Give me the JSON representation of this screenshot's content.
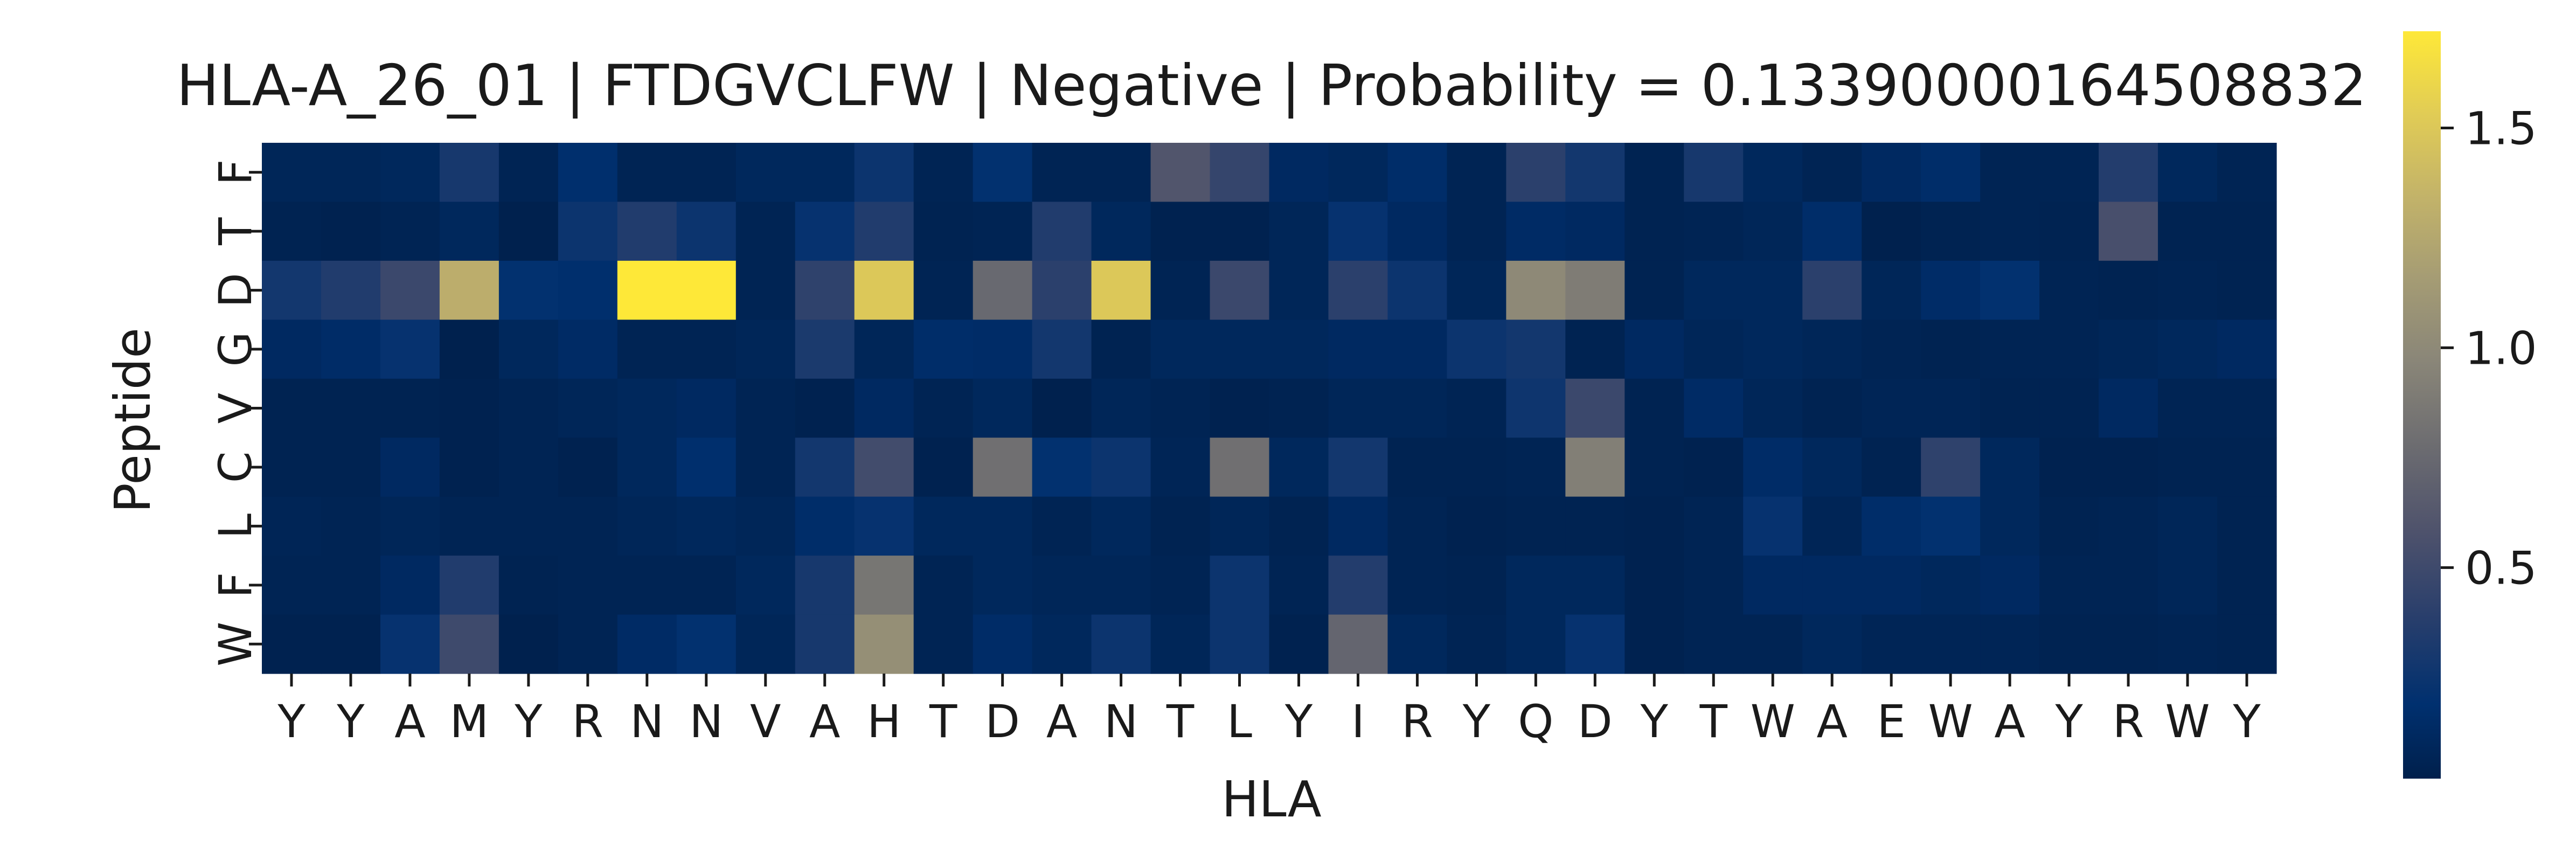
{
  "chart_data": {
    "type": "heatmap",
    "title": "HLA-A_26_01 | FTDGVCLFW | Negative | Probability = 0.13390000164508832",
    "xlabel": "HLA",
    "ylabel": "Peptide",
    "x_categories": [
      "Y",
      "Y",
      "A",
      "M",
      "Y",
      "R",
      "N",
      "N",
      "V",
      "A",
      "H",
      "T",
      "D",
      "A",
      "N",
      "T",
      "L",
      "Y",
      "I",
      "R",
      "Y",
      "Q",
      "D",
      "Y",
      "T",
      "W",
      "A",
      "E",
      "W",
      "A",
      "Y",
      "R",
      "W",
      "Y"
    ],
    "y_categories": [
      "F",
      "T",
      "D",
      "G",
      "V",
      "C",
      "L",
      "F",
      "W"
    ],
    "colormap": "cividis",
    "colorbar": {
      "vmin": 0.02,
      "vmax": 1.72,
      "ticks": [
        0.5,
        1.0,
        1.5
      ],
      "tick_labels": [
        "0.5",
        "1.0",
        "1.5"
      ]
    },
    "grid": false,
    "values": [
      [
        0.08,
        0.08,
        0.1,
        0.3,
        0.06,
        0.18,
        0.06,
        0.06,
        0.1,
        0.1,
        0.25,
        0.06,
        0.2,
        0.06,
        0.06,
        0.6,
        0.45,
        0.12,
        0.1,
        0.16,
        0.06,
        0.4,
        0.28,
        0.05,
        0.3,
        0.1,
        0.06,
        0.12,
        0.16,
        0.06,
        0.06,
        0.36,
        0.1,
        0.06
      ],
      [
        0.05,
        0.04,
        0.06,
        0.1,
        0.03,
        0.25,
        0.35,
        0.25,
        0.06,
        0.22,
        0.35,
        0.05,
        0.06,
        0.35,
        0.1,
        0.04,
        0.04,
        0.08,
        0.22,
        0.12,
        0.06,
        0.14,
        0.12,
        0.05,
        0.06,
        0.08,
        0.16,
        0.03,
        0.05,
        0.06,
        0.05,
        0.55,
        0.05,
        0.05
      ],
      [
        0.28,
        0.35,
        0.48,
        1.3,
        0.2,
        0.18,
        1.72,
        1.72,
        0.06,
        0.42,
        1.5,
        0.06,
        0.75,
        0.4,
        1.5,
        0.06,
        0.48,
        0.08,
        0.4,
        0.25,
        0.08,
        1.0,
        0.9,
        0.05,
        0.1,
        0.1,
        0.4,
        0.08,
        0.15,
        0.2,
        0.06,
        0.05,
        0.06,
        0.05
      ],
      [
        0.12,
        0.15,
        0.22,
        0.03,
        0.1,
        0.14,
        0.06,
        0.06,
        0.08,
        0.32,
        0.08,
        0.16,
        0.15,
        0.28,
        0.05,
        0.1,
        0.1,
        0.1,
        0.12,
        0.12,
        0.25,
        0.28,
        0.05,
        0.12,
        0.08,
        0.1,
        0.08,
        0.06,
        0.05,
        0.06,
        0.06,
        0.08,
        0.1,
        0.12
      ],
      [
        0.05,
        0.05,
        0.05,
        0.04,
        0.06,
        0.08,
        0.1,
        0.12,
        0.06,
        0.04,
        0.12,
        0.06,
        0.1,
        0.03,
        0.08,
        0.06,
        0.04,
        0.05,
        0.08,
        0.08,
        0.06,
        0.26,
        0.48,
        0.05,
        0.14,
        0.08,
        0.05,
        0.07,
        0.07,
        0.05,
        0.05,
        0.12,
        0.06,
        0.06
      ],
      [
        0.05,
        0.05,
        0.12,
        0.04,
        0.06,
        0.04,
        0.1,
        0.18,
        0.06,
        0.28,
        0.52,
        0.04,
        0.8,
        0.2,
        0.25,
        0.07,
        0.8,
        0.1,
        0.28,
        0.05,
        0.05,
        0.06,
        0.92,
        0.05,
        0.04,
        0.15,
        0.1,
        0.05,
        0.42,
        0.1,
        0.04,
        0.04,
        0.05,
        0.05
      ],
      [
        0.07,
        0.06,
        0.08,
        0.06,
        0.06,
        0.06,
        0.08,
        0.1,
        0.08,
        0.16,
        0.22,
        0.1,
        0.1,
        0.06,
        0.1,
        0.05,
        0.08,
        0.05,
        0.12,
        0.06,
        0.04,
        0.05,
        0.05,
        0.04,
        0.06,
        0.22,
        0.07,
        0.16,
        0.2,
        0.1,
        0.05,
        0.06,
        0.08,
        0.05
      ],
      [
        0.06,
        0.06,
        0.12,
        0.35,
        0.05,
        0.06,
        0.06,
        0.06,
        0.1,
        0.3,
        0.85,
        0.06,
        0.1,
        0.08,
        0.08,
        0.06,
        0.25,
        0.06,
        0.36,
        0.06,
        0.05,
        0.1,
        0.1,
        0.04,
        0.06,
        0.12,
        0.12,
        0.12,
        0.1,
        0.12,
        0.06,
        0.06,
        0.08,
        0.05
      ],
      [
        0.04,
        0.04,
        0.22,
        0.5,
        0.03,
        0.06,
        0.14,
        0.2,
        0.08,
        0.3,
        1.05,
        0.06,
        0.15,
        0.1,
        0.25,
        0.08,
        0.25,
        0.04,
        0.72,
        0.1,
        0.06,
        0.1,
        0.22,
        0.04,
        0.06,
        0.06,
        0.1,
        0.07,
        0.07,
        0.07,
        0.05,
        0.05,
        0.06,
        0.05
      ]
    ]
  }
}
